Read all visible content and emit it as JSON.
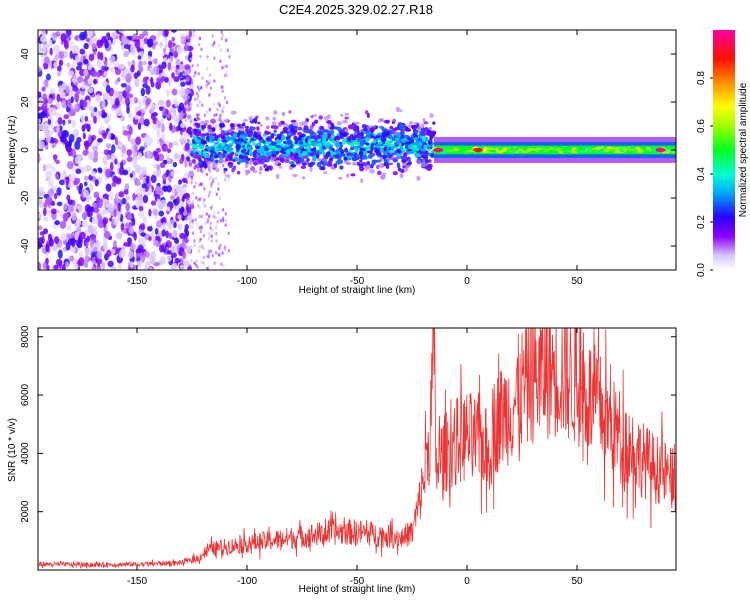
{
  "title": "C2E4.2025.329.02.27.R18",
  "chart_data": [
    {
      "type": "heatmap",
      "xlabel": "Height of straight line (km)",
      "ylabel": "Frequency (Hz)",
      "xlim": [
        -195,
        95
      ],
      "ylim": [
        -50,
        50
      ],
      "xticks": [
        -150,
        -100,
        -50,
        0,
        50
      ],
      "yticks": [
        -40,
        -20,
        0,
        20,
        40
      ],
      "colorbar": {
        "label": "Normalized spectral amplitude",
        "range": [
          0,
          1
        ],
        "ticks": [
          0.0,
          0.2,
          0.4,
          0.6,
          0.8
        ]
      },
      "regions": [
        {
          "x": [
            -195,
            -125
          ],
          "description": "sparse noise, amplitude ~0.1-0.2 across all frequencies"
        },
        {
          "x": [
            -125,
            -15
          ],
          "center_hz": 2,
          "width_hz": 14,
          "amplitude": 0.35
        },
        {
          "x": [
            -15,
            95
          ],
          "center_hz": 0,
          "width_hz": 6,
          "amplitude": 0.5,
          "peak_amplitude": 1.0
        }
      ],
      "grid": false
    },
    {
      "type": "line",
      "xlabel": "Height of straight line (km)",
      "ylabel": "SNR (10 * v/v)",
      "xlim": [
        -195,
        95
      ],
      "ylim": [
        0,
        8300
      ],
      "xticks": [
        -150,
        -100,
        -50,
        0,
        50
      ],
      "yticks": [
        2000,
        4000,
        6000,
        8000
      ],
      "color": "#ee3333",
      "series": [
        {
          "x": [
            -195,
            -170,
            -150,
            -130,
            -122,
            -118,
            -110,
            -100,
            -90,
            -80,
            -70,
            -60,
            -50,
            -40,
            -30,
            -25,
            -22,
            -20,
            -17,
            -15,
            -14,
            -12,
            -10,
            -5,
            0,
            5,
            8,
            10,
            12,
            15,
            20,
            25,
            30,
            35,
            40,
            45,
            50,
            55,
            60,
            65,
            70,
            75,
            80,
            85,
            90,
            95
          ],
          "values": [
            200,
            180,
            200,
            250,
            400,
            700,
            800,
            900,
            1000,
            1100,
            1200,
            1300,
            1300,
            1200,
            1100,
            1300,
            2200,
            3000,
            4500,
            7500,
            3500,
            3800,
            4000,
            4400,
            4600,
            4400,
            4300,
            3800,
            4900,
            5200,
            5600,
            6200,
            6600,
            6800,
            6900,
            6700,
            6400,
            6000,
            5600,
            5000,
            4600,
            4200,
            3800,
            3500,
            3300,
            3000
          ]
        }
      ],
      "grid": false
    }
  ]
}
